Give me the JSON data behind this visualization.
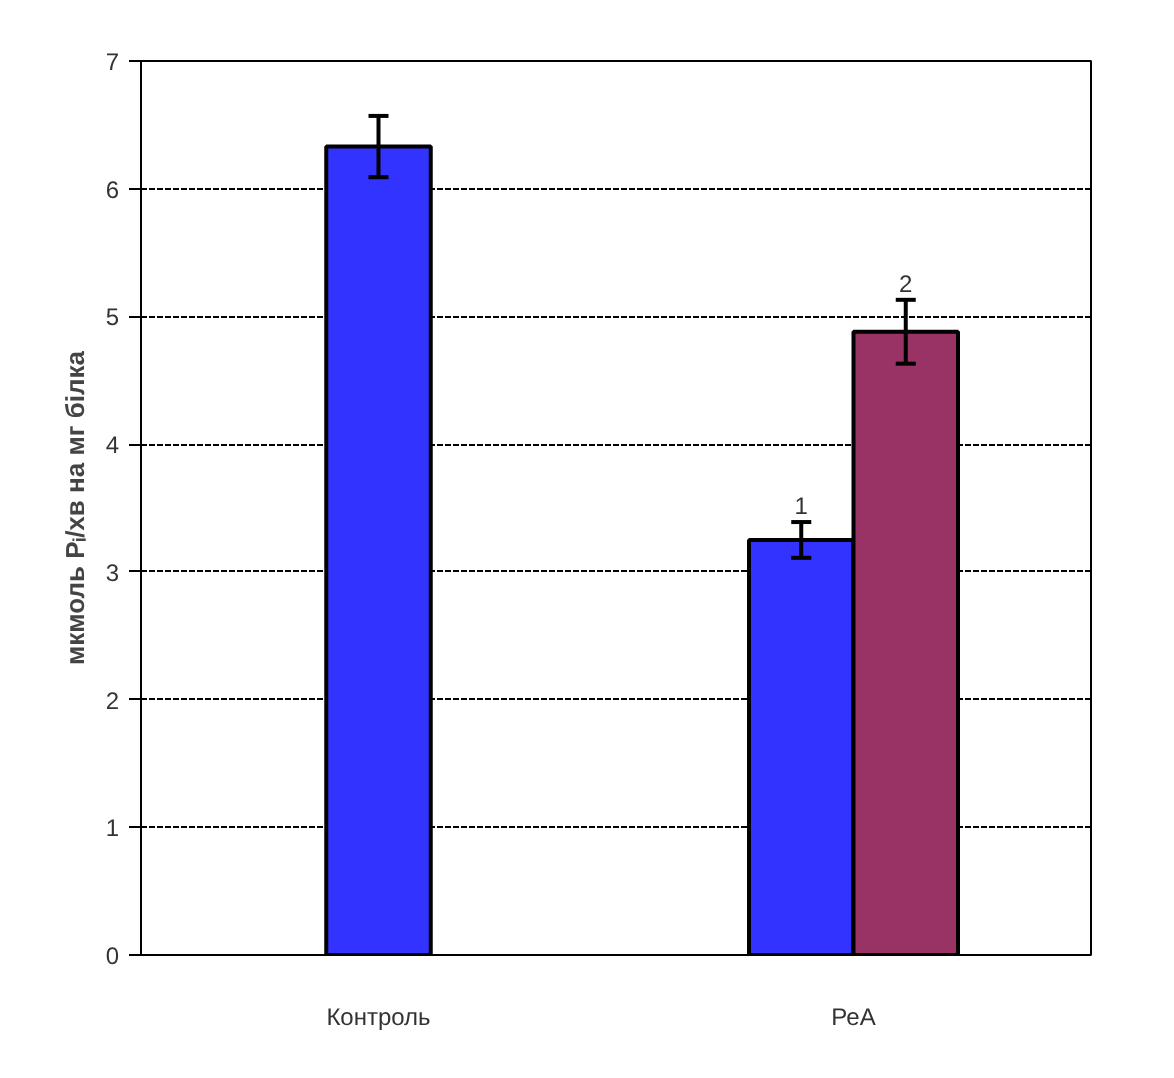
{
  "chart_data": {
    "type": "bar",
    "ylabel": "мкмоль Pᵢ/хв на мг білка",
    "categories": [
      "Контроль",
      "РеА"
    ],
    "series": [
      {
        "color": "#3333ff",
        "values": [
          6.33,
          3.25
        ],
        "errors": [
          0.24,
          0.14
        ]
      },
      {
        "color": "#993366",
        "values": [
          null,
          4.88
        ],
        "errors": [
          null,
          0.25
        ]
      }
    ],
    "annotations": [
      {
        "text": "1",
        "x": "РеА",
        "y": 3.25
      },
      {
        "text": "2",
        "x": "РеА",
        "y": 4.88
      }
    ],
    "ylim": [
      0,
      7
    ],
    "yticks": [
      0,
      1,
      2,
      3,
      4,
      5,
      6,
      7
    ],
    "grid": "y"
  }
}
